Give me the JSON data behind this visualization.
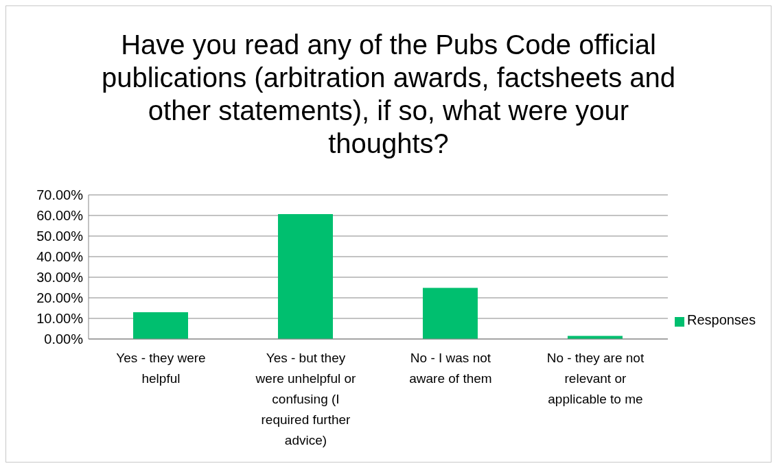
{
  "chart_data": {
    "type": "bar",
    "title": "Have you read any of the Pubs Code official publications (arbitration awards, factsheets and other statements), if so, what were your thoughts?",
    "categories": [
      "Yes - they were helpful",
      "Yes - but they were unhelpful or confusing (I required further advice)",
      "No - I was not aware of them",
      "No - they are not relevant or applicable to me"
    ],
    "series": [
      {
        "name": "Responses",
        "color": "#00bf6f",
        "values": [
          13,
          60.7,
          24.8,
          1.5
        ]
      }
    ],
    "ylim": [
      0,
      70
    ],
    "yticks": [
      {
        "value": 0,
        "label": "0.00%"
      },
      {
        "value": 10,
        "label": "10.00%"
      },
      {
        "value": 20,
        "label": "20.00%"
      },
      {
        "value": 30,
        "label": "30.00%"
      },
      {
        "value": 40,
        "label": "40.00%"
      },
      {
        "value": 50,
        "label": "50.00%"
      },
      {
        "value": 60,
        "label": "60.00%"
      },
      {
        "value": 70,
        "label": "70.00%"
      }
    ],
    "grid": "y",
    "legend": "right"
  }
}
